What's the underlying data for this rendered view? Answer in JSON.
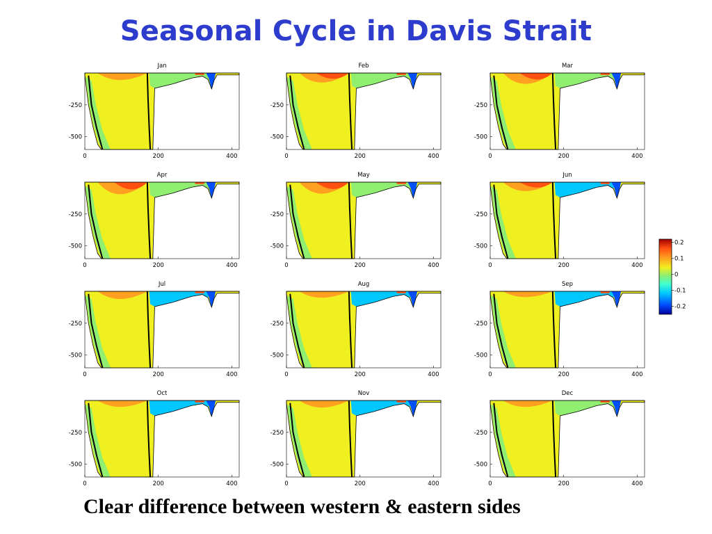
{
  "slide": {
    "title": "Seasonal Cycle in Davis Strait",
    "caption": "Clear difference between western & eastern sides"
  },
  "colors": {
    "title": "#2d3ccc",
    "scale": [
      "#0000a0",
      "#0050ff",
      "#00c8ff",
      "#40ffd0",
      "#90ee70",
      "#f0f020",
      "#ffa020",
      "#ff5010",
      "#a00000"
    ]
  },
  "chart_data": {
    "type": "heatmap",
    "panels": [
      "Jan",
      "Feb",
      "Mar",
      "Apr",
      "May",
      "Jun",
      "Jul",
      "Aug",
      "Sep",
      "Oct",
      "Nov",
      "Dec"
    ],
    "x_ticks": [
      0,
      200,
      400
    ],
    "y_ticks": [
      -250,
      -500
    ],
    "xlim": [
      0,
      420
    ],
    "ylim": [
      -600,
      0
    ],
    "colorbar": {
      "ticks": [
        "0.2",
        "0.1",
        "0",
        "-0.1",
        "-0.2"
      ],
      "tick_values": [
        0.2,
        0.1,
        0,
        -0.1,
        -0.2
      ],
      "range": [
        -0.25,
        0.22
      ]
    }
  }
}
